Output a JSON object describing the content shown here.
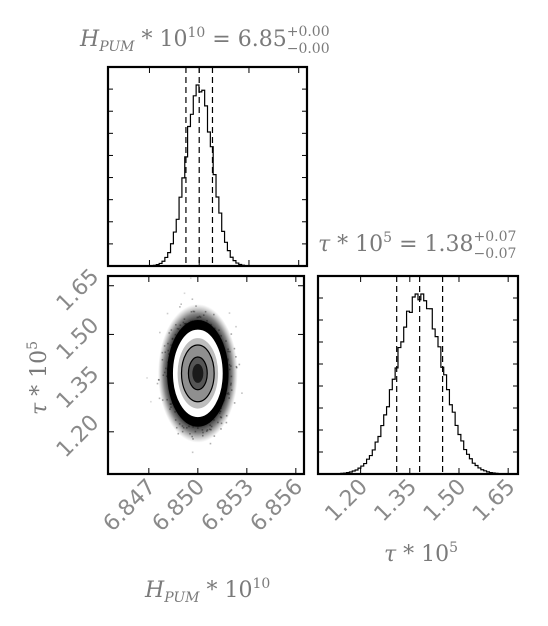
{
  "chart_data": {
    "type": "corner",
    "parameters": [
      {
        "symbol": "H",
        "subscript": "PUM",
        "scale_text": " * 10",
        "scale_exp": "10",
        "median": "6.85",
        "upper": "+0.00",
        "lower": "−0.00",
        "median_value": 6.85,
        "sigma": 0.0008,
        "quantiles": [
          6.8492,
          6.85,
          6.8508
        ],
        "xlim": [
          6.8445,
          6.8565
        ],
        "ticks": [
          "6.847",
          "6.850",
          "6.853",
          "6.856"
        ],
        "tick_values": [
          6.847,
          6.85,
          6.853,
          6.856
        ]
      },
      {
        "symbol": "τ",
        "subscript": "",
        "scale_text": " * 10",
        "scale_exp": "5",
        "median": "1.38",
        "upper": "+0.07",
        "lower": "−0.07",
        "median_value": 1.38,
        "sigma": 0.07,
        "quantiles": [
          1.31,
          1.38,
          1.45
        ],
        "xlim": [
          1.07,
          1.68
        ],
        "ticks": [
          "1.20",
          "1.35",
          "1.50",
          "1.65"
        ],
        "tick_values": [
          1.2,
          1.35,
          1.5,
          1.65
        ]
      }
    ],
    "histogram": "step",
    "quantile_lines": "dashed",
    "joint": {
      "type": "scatter+contour",
      "contour_levels": 3
    },
    "colors": {
      "line": "#000000",
      "text": "#7a7a7a",
      "frame": "#000000"
    }
  }
}
